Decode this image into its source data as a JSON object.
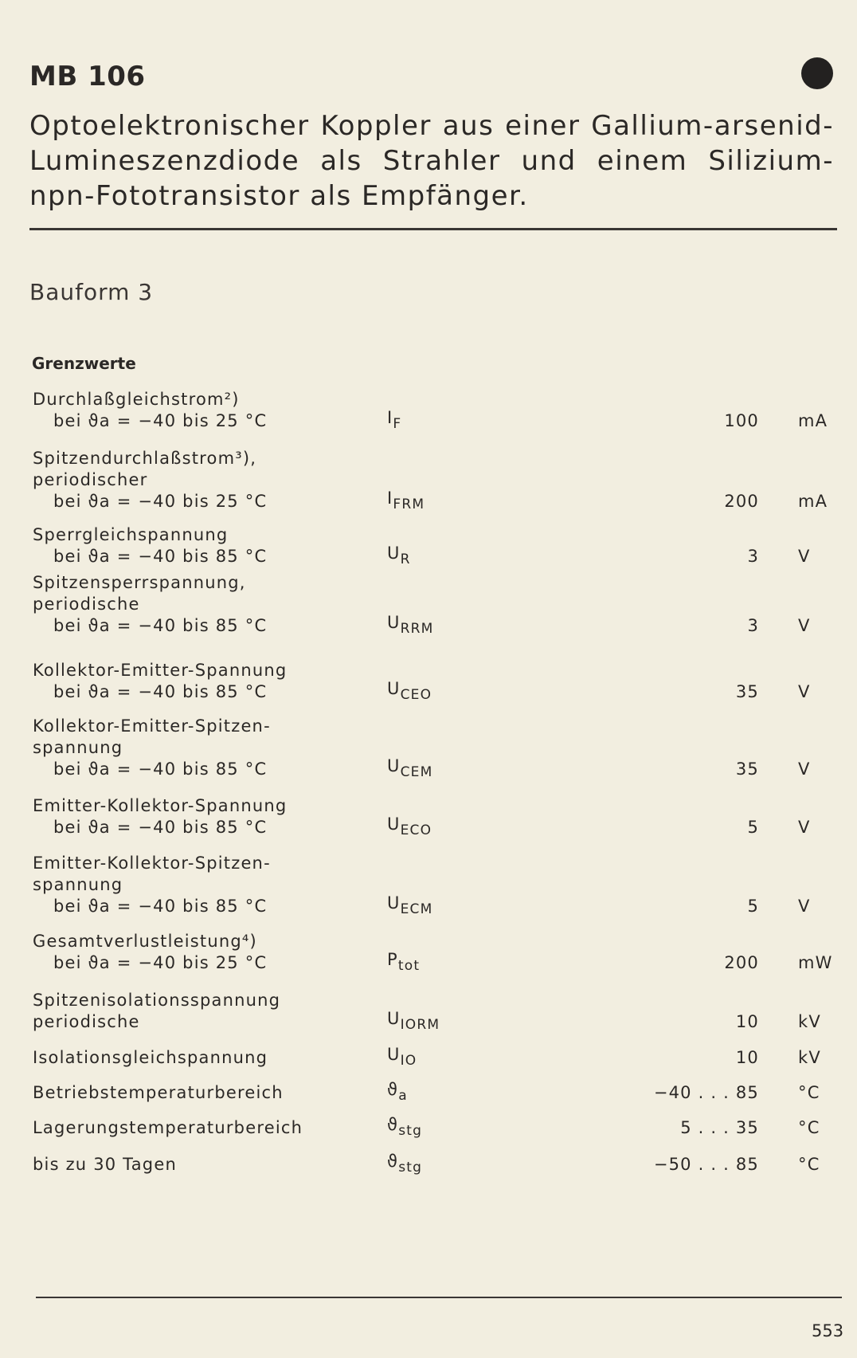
{
  "header": {
    "title": "MB 106",
    "description": "Optoelektronischer Koppler aus einer Gallium-arsenid-Lumineszenzdiode als Strahler und einem Silizium-npn-Fototransistor als Empfänger.",
    "bauform": "Bauform 3"
  },
  "section_title": "Grenzwerte",
  "rows": [
    {
      "lines": [
        "Durchlaßgleichstrom²)",
        "bei ϑa = −40 bis 25 °C"
      ],
      "symbol": "I",
      "sub": "F",
      "value": "100",
      "unit": "mA"
    },
    {
      "lines": [
        "Spitzendurchlaßstrom³),",
        "periodischer",
        "bei ϑa = −40 bis 25 °C"
      ],
      "symbol": "I",
      "sub": "FRM",
      "value": "200",
      "unit": "mA"
    },
    {
      "lines": [
        "Sperrgleichspannung",
        "bei ϑa = −40 bis 85 °C"
      ],
      "symbol": "U",
      "sub": "R",
      "value": "3",
      "unit": "V"
    },
    {
      "lines": [
        "Spitzensperrspannung,",
        "periodische",
        "bei ϑa = −40 bis 85 °C"
      ],
      "symbol": "U",
      "sub": "RRM",
      "value": "3",
      "unit": "V"
    },
    {
      "lines": [
        "Kollektor-Emitter-Spannung",
        "bei ϑa = −40 bis 85 °C"
      ],
      "symbol": "U",
      "sub": "CEO",
      "value": "35",
      "unit": "V"
    },
    {
      "lines": [
        "Kollektor-Emitter-Spitzen-",
        "spannung",
        "bei ϑa = −40 bis 85 °C"
      ],
      "symbol": "U",
      "sub": "CEM",
      "value": "35",
      "unit": "V"
    },
    {
      "lines": [
        "Emitter-Kollektor-Spannung",
        "bei ϑa = −40 bis 85 °C"
      ],
      "symbol": "U",
      "sub": "ECO",
      "value": "5",
      "unit": "V"
    },
    {
      "lines": [
        "Emitter-Kollektor-Spitzen-",
        "spannung",
        "bei ϑa = −40 bis 85 °C"
      ],
      "symbol": "U",
      "sub": "ECM",
      "value": "5",
      "unit": "V"
    },
    {
      "lines": [
        "Gesamtverlustleistung⁴)",
        "bei ϑa = −40 bis 25 °C"
      ],
      "symbol": "P",
      "sub": "tot",
      "value": "200",
      "unit": "mW"
    },
    {
      "lines": [
        "Spitzenisolationsspannung",
        "periodische"
      ],
      "symbol": "U",
      "sub": "IORM",
      "value": "10",
      "unit": "kV"
    },
    {
      "lines": [
        "Isolationsgleichspannung"
      ],
      "symbol": "U",
      "sub": "IO",
      "value": "10",
      "unit": "kV"
    },
    {
      "lines": [
        "Betriebstemperaturbereich"
      ],
      "symbol": "ϑ",
      "sub": "a",
      "value": "−40 . . . 85",
      "unit": "°C"
    },
    {
      "lines": [
        "Lagerungstemperaturbereich"
      ],
      "symbol": "ϑ",
      "sub": "stg",
      "value": "5 . . . 35",
      "unit": "°C"
    },
    {
      "lines": [
        "bis zu 30 Tagen"
      ],
      "symbol": "ϑ",
      "sub": "stg",
      "value": "−50 . . . 85",
      "unit": "°C"
    }
  ],
  "footer": {
    "page_number": "553"
  }
}
